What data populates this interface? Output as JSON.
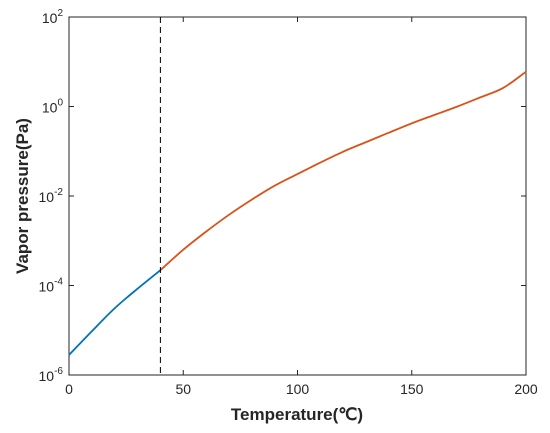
{
  "chart_data": {
    "type": "line",
    "title": "",
    "xlabel": "Temperature(℃)",
    "ylabel": "Vapor pressure(Pa)",
    "xlim": [
      0,
      200
    ],
    "ylim": [
      1e-06,
      100
    ],
    "yscale": "log",
    "grid": false,
    "x_ticks": [
      0,
      50,
      100,
      150,
      200
    ],
    "x_tick_labels": [
      "0",
      "50",
      "100",
      "150",
      "200"
    ],
    "y_ticks": [
      1e-06,
      0.0001,
      0.01,
      1,
      100
    ],
    "y_tick_labels": [
      {
        "base": "10",
        "exp": "-6"
      },
      {
        "base": "10",
        "exp": "-4"
      },
      {
        "base": "10",
        "exp": "-2"
      },
      {
        "base": "10",
        "exp": "0"
      },
      {
        "base": "10",
        "exp": "2"
      }
    ],
    "vline": {
      "x": 40,
      "style": "dashed",
      "color": "#000000"
    },
    "series": [
      {
        "color": "#0072BD",
        "points": [
          [
            0,
            2.8e-06
          ],
          [
            10,
            9.5e-06
          ],
          [
            20,
            3.1e-05
          ],
          [
            30,
            8.5e-05
          ],
          [
            40,
            0.00022
          ]
        ]
      },
      {
        "color": "#D95319",
        "points": [
          [
            40,
            0.00022
          ],
          [
            50,
            0.00063
          ],
          [
            60,
            0.0016
          ],
          [
            70,
            0.0038
          ],
          [
            80,
            0.0083
          ],
          [
            90,
            0.017
          ],
          [
            100,
            0.031
          ],
          [
            110,
            0.056
          ],
          [
            120,
            0.098
          ],
          [
            130,
            0.16
          ],
          [
            140,
            0.26
          ],
          [
            150,
            0.42
          ],
          [
            160,
            0.65
          ],
          [
            170,
            1.0
          ],
          [
            180,
            1.6
          ],
          [
            190,
            2.6
          ],
          [
            200,
            6.0
          ]
        ]
      }
    ]
  }
}
